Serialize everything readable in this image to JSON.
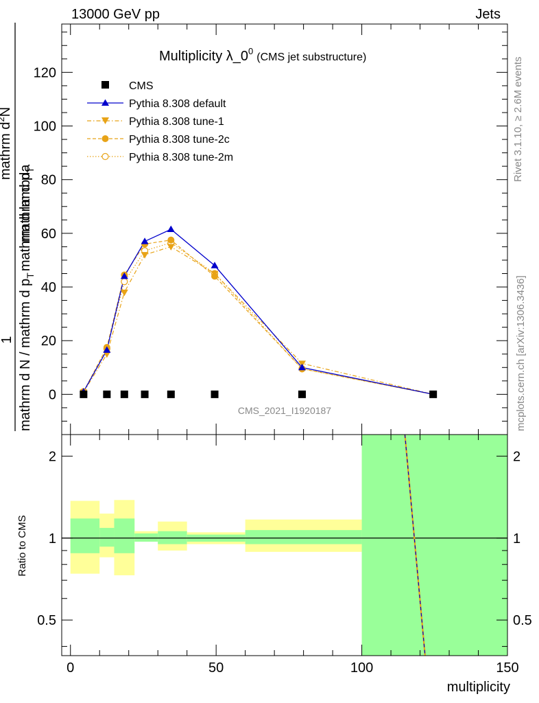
{
  "header": {
    "left": "13000 GeV pp",
    "right": "Jets"
  },
  "side_labels": {
    "rivet": "Rivet 3.1.10, ≥ 2.6M events",
    "mcplots": "mcplots.cern.ch [arXiv:1306.3436]"
  },
  "colors": {
    "default": "#0000cc",
    "tunes": "#e8a317",
    "band_stat": "#99ff99",
    "band_total": "#ffff99",
    "data": "#000000"
  },
  "chart_data": [
    {
      "type": "line",
      "title_main": "Multiplicity λ_0",
      "title_sup": "0",
      "title_sub": "(CMS jet substructure)",
      "ylabel_frac_top": "1",
      "ylabel_frac_bottom": "mathrm d N / mathrm d p",
      "ylabel_frac_bottom_sub": "T",
      "ylabel_frac_bottom_tail": "mathrm d N",
      "ylabel_top_text": "mathrm d",
      "ylabel_top_sup": "2",
      "ylabel_top_mid": "N",
      "ylabel_top_rest": "mathrm d p",
      "ylabel_top_sub": "T",
      "ylabel_top_tail": "mathrm d lambda",
      "xlim": [
        -3,
        150
      ],
      "ylim": [
        -15,
        138
      ],
      "yticks": [
        0,
        20,
        40,
        60,
        80,
        100,
        120
      ],
      "ytick_labels": [
        "0",
        "20",
        "40",
        "60",
        "80",
        "100",
        "120"
      ],
      "watermark": "CMS_2021_I1920187",
      "legend": [
        {
          "name": "CMS",
          "marker": "square"
        },
        {
          "name": "Pythia 8.308 default",
          "marker": "triangle-up"
        },
        {
          "name": "Pythia 8.308 tune-1",
          "marker": "triangle-down"
        },
        {
          "name": "Pythia 8.308 tune-2c",
          "marker": "circle"
        },
        {
          "name": "Pythia 8.308 tune-2m",
          "marker": "open-circle"
        }
      ],
      "x": [
        4.5,
        12.5,
        18.5,
        25.5,
        34.5,
        49.5,
        79.5,
        124.5
      ],
      "series": [
        {
          "name": "CMS",
          "values": [
            0,
            0,
            0,
            0,
            0,
            0,
            0,
            0
          ]
        },
        {
          "name": "Pythia 8.308 default",
          "values": [
            1.0,
            16.5,
            44.0,
            57.0,
            61.5,
            48.0,
            10.0,
            0.0
          ]
        },
        {
          "name": "Pythia 8.308 tune-1",
          "values": [
            0.8,
            15.0,
            38.0,
            52.0,
            55.0,
            45.0,
            11.5,
            0.0
          ]
        },
        {
          "name": "Pythia 8.308 tune-2c",
          "values": [
            1.0,
            17.5,
            44.5,
            56.0,
            57.5,
            44.0,
            9.5,
            0.0
          ]
        },
        {
          "name": "Pythia 8.308 tune-2m",
          "values": [
            1.0,
            17.0,
            42.0,
            53.5,
            56.5,
            45.0,
            9.5,
            0.0
          ]
        }
      ]
    },
    {
      "type": "area",
      "ylabel": "Ratio to CMS",
      "xlabel": "multiplicity",
      "xlim": [
        -3,
        150
      ],
      "ylim": [
        0.37,
        2.4
      ],
      "yscale": "log",
      "xticks": [
        0,
        50,
        100,
        150
      ],
      "xtick_labels": [
        "0",
        "50",
        "100",
        "150"
      ],
      "yticks": [
        0.5,
        1,
        2
      ],
      "ytick_labels": [
        "0.5",
        "1",
        "2"
      ],
      "reference_line": 1,
      "bands": [
        {
          "x0": 0,
          "x1": 10,
          "stat": [
            0.88,
            1.18
          ],
          "total": [
            0.74,
            1.37
          ]
        },
        {
          "x0": 10,
          "x1": 15,
          "stat": [
            0.93,
            1.09
          ],
          "total": [
            0.85,
            1.23
          ]
        },
        {
          "x0": 15,
          "x1": 22,
          "stat": [
            0.88,
            1.18
          ],
          "total": [
            0.73,
            1.38
          ]
        },
        {
          "x0": 22,
          "x1": 30,
          "stat": [
            0.97,
            1.04
          ],
          "total": [
            0.97,
            1.06
          ]
        },
        {
          "x0": 30,
          "x1": 40,
          "stat": [
            0.95,
            1.06
          ],
          "total": [
            0.9,
            1.15
          ]
        },
        {
          "x0": 40,
          "x1": 60,
          "stat": [
            0.97,
            1.03
          ],
          "total": [
            0.95,
            1.05
          ]
        },
        {
          "x0": 60,
          "x1": 100,
          "stat": [
            0.95,
            1.07
          ],
          "total": [
            0.89,
            1.17
          ]
        },
        {
          "x0": 100,
          "x1": 150,
          "stat": [
            0.3,
            2.6
          ],
          "total": [
            0.3,
            2.6
          ]
        }
      ],
      "ratio_line": {
        "x": [
          114.5,
          122.5
        ],
        "y": [
          2.6,
          0.3
        ]
      }
    }
  ]
}
